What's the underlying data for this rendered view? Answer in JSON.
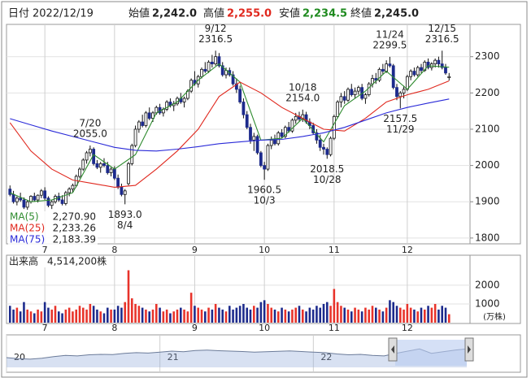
{
  "header": {
    "date_label": "日付",
    "date": "2022/12/19",
    "open_label": "始値",
    "open": "2,242.0",
    "high_label": "高値",
    "high": "2,255.0",
    "low_label": "安値",
    "low": "2,234.5",
    "close_label": "終値",
    "close": "2,245.0"
  },
  "chart_data": [
    {
      "type": "candlestick",
      "up_color": "#ffffff",
      "down_color": "#1c2a8c",
      "outline_color": "#111111",
      "candles": [
        [
          1935,
          1945,
          1915,
          1920
        ],
        [
          1920,
          1930,
          1895,
          1900
        ],
        [
          1900,
          1915,
          1890,
          1910
        ],
        [
          1910,
          1925,
          1900,
          1905
        ],
        [
          1905,
          1912,
          1880,
          1885
        ],
        [
          1885,
          1905,
          1878,
          1900
        ],
        [
          1900,
          1918,
          1895,
          1915
        ],
        [
          1915,
          1925,
          1900,
          1905
        ],
        [
          1905,
          1920,
          1898,
          1918
        ],
        [
          1918,
          1935,
          1910,
          1930
        ],
        [
          1930,
          1940,
          1905,
          1910
        ],
        [
          1910,
          1915,
          1885,
          1890
        ],
        [
          1890,
          1905,
          1880,
          1900
        ],
        [
          1900,
          1920,
          1895,
          1915
        ],
        [
          1915,
          1925,
          1900,
          1905
        ],
        [
          1905,
          1918,
          1890,
          1895
        ],
        [
          1895,
          1930,
          1890,
          1925
        ],
        [
          1925,
          1940,
          1915,
          1935
        ],
        [
          1935,
          1950,
          1925,
          1945
        ],
        [
          1945,
          1975,
          1940,
          1970
        ],
        [
          1970,
          1995,
          1965,
          1990
        ],
        [
          1990,
          2020,
          1985,
          2015
        ],
        [
          2015,
          2040,
          2005,
          2035
        ],
        [
          2035,
          2055,
          2025,
          2045
        ],
        [
          2045,
          2050,
          2000,
          2005
        ],
        [
          2005,
          2015,
          1990,
          1995
        ],
        [
          1995,
          2010,
          1980,
          2005
        ],
        [
          2005,
          2020,
          1995,
          2000
        ],
        [
          2000,
          2010,
          1975,
          1980
        ],
        [
          1980,
          1995,
          1970,
          1990
        ],
        [
          1990,
          1998,
          1960,
          1965
        ],
        [
          1965,
          1975,
          1935,
          1940
        ],
        [
          1940,
          1950,
          1915,
          1920
        ],
        [
          1920,
          1935,
          1893,
          1930
        ],
        [
          1950,
          2010,
          1945,
          2005
        ],
        [
          2005,
          2060,
          2000,
          2055
        ],
        [
          2055,
          2110,
          2050,
          2100
        ],
        [
          2100,
          2125,
          2090,
          2120
        ],
        [
          2120,
          2140,
          2105,
          2110
        ],
        [
          2110,
          2150,
          2105,
          2145
        ],
        [
          2145,
          2160,
          2125,
          2130
        ],
        [
          2130,
          2150,
          2120,
          2145
        ],
        [
          2145,
          2165,
          2140,
          2160
        ],
        [
          2160,
          2170,
          2140,
          2145
        ],
        [
          2145,
          2160,
          2135,
          2155
        ],
        [
          2155,
          2180,
          2150,
          2175
        ],
        [
          2175,
          2185,
          2160,
          2165
        ],
        [
          2165,
          2178,
          2150,
          2170
        ],
        [
          2170,
          2190,
          2165,
          2185
        ],
        [
          2185,
          2200,
          2170,
          2175
        ],
        [
          2175,
          2190,
          2160,
          2185
        ],
        [
          2185,
          2210,
          2180,
          2205
        ],
        [
          2205,
          2240,
          2200,
          2235
        ],
        [
          2235,
          2260,
          2220,
          2225
        ],
        [
          2225,
          2250,
          2215,
          2245
        ],
        [
          2245,
          2270,
          2240,
          2265
        ],
        [
          2265,
          2285,
          2255,
          2260
        ],
        [
          2260,
          2290,
          2255,
          2285
        ],
        [
          2285,
          2305,
          2270,
          2280
        ],
        [
          2280,
          2316.5,
          2275,
          2300
        ],
        [
          2300,
          2310,
          2270,
          2275
        ],
        [
          2275,
          2285,
          2245,
          2250
        ],
        [
          2250,
          2270,
          2240,
          2262
        ],
        [
          2262,
          2270,
          2245,
          2250
        ],
        [
          2250,
          2260,
          2220,
          2225
        ],
        [
          2225,
          2240,
          2200,
          2210
        ],
        [
          2210,
          2220,
          2170,
          2175
        ],
        [
          2175,
          2185,
          2130,
          2140
        ],
        [
          2140,
          2150,
          2100,
          2105
        ],
        [
          2105,
          2115,
          2060,
          2070
        ],
        [
          2070,
          2090,
          2040,
          2080
        ],
        [
          2080,
          2085,
          2030,
          2035
        ],
        [
          2035,
          2040,
          1995,
          2000
        ],
        [
          2000,
          2010,
          1960.5,
          1990
        ],
        [
          1990,
          2060,
          1985,
          2055
        ],
        [
          2055,
          2080,
          2045,
          2070
        ],
        [
          2070,
          2085,
          2055,
          2060
        ],
        [
          2060,
          2095,
          2055,
          2090
        ],
        [
          2090,
          2100,
          2075,
          2080
        ],
        [
          2080,
          2110,
          2075,
          2105
        ],
        [
          2105,
          2120,
          2090,
          2095
        ],
        [
          2095,
          2130,
          2090,
          2125
        ],
        [
          2125,
          2145,
          2115,
          2135
        ],
        [
          2135,
          2148,
          2120,
          2128
        ],
        [
          2128,
          2154,
          2120,
          2140
        ],
        [
          2140,
          2148,
          2115,
          2120
        ],
        [
          2120,
          2130,
          2100,
          2110
        ],
        [
          2110,
          2118,
          2085,
          2090
        ],
        [
          2090,
          2100,
          2060,
          2070
        ],
        [
          2070,
          2085,
          2040,
          2050
        ],
        [
          2050,
          2060,
          2030,
          2045
        ],
        [
          2045,
          2050,
          2018.5,
          2030
        ],
        [
          2030,
          2080,
          2025,
          2075
        ],
        [
          2075,
          2140,
          2070,
          2135
        ],
        [
          2135,
          2180,
          2130,
          2175
        ],
        [
          2175,
          2200,
          2160,
          2190
        ],
        [
          2190,
          2205,
          2170,
          2180
        ],
        [
          2180,
          2215,
          2175,
          2210
        ],
        [
          2210,
          2225,
          2190,
          2195
        ],
        [
          2195,
          2215,
          2185,
          2205
        ],
        [
          2205,
          2220,
          2195,
          2215
        ],
        [
          2215,
          2225,
          2180,
          2185
        ],
        [
          2185,
          2200,
          2170,
          2195
        ],
        [
          2195,
          2230,
          2190,
          2225
        ],
        [
          2225,
          2250,
          2215,
          2240
        ],
        [
          2240,
          2255,
          2225,
          2235
        ],
        [
          2235,
          2270,
          2230,
          2265
        ],
        [
          2265,
          2280,
          2250,
          2260
        ],
        [
          2260,
          2290,
          2255,
          2280
        ],
        [
          2280,
          2299.5,
          2270,
          2275
        ],
        [
          2275,
          2280,
          2210,
          2215
        ],
        [
          2215,
          2225,
          2180,
          2190
        ],
        [
          2190,
          2205,
          2157.5,
          2200
        ],
        [
          2200,
          2220,
          2185,
          2210
        ],
        [
          2210,
          2250,
          2205,
          2245
        ],
        [
          2245,
          2265,
          2235,
          2260
        ],
        [
          2260,
          2270,
          2245,
          2250
        ],
        [
          2250,
          2275,
          2245,
          2270
        ],
        [
          2270,
          2280,
          2255,
          2262
        ],
        [
          2262,
          2290,
          2258,
          2285
        ],
        [
          2285,
          2295,
          2265,
          2270
        ],
        [
          2270,
          2285,
          2262,
          2280
        ],
        [
          2280,
          2295,
          2270,
          2290
        ],
        [
          2290,
          2300,
          2270,
          2280
        ],
        [
          2280,
          2316.5,
          2265,
          2270
        ],
        [
          2270,
          2280,
          2250,
          2255
        ],
        [
          2242,
          2255,
          2234.5,
          2245
        ]
      ],
      "xlim": [
        -1,
        132
      ],
      "xticks": [
        {
          "value": 10,
          "label": "7"
        },
        {
          "value": 30,
          "label": "8"
        },
        {
          "value": 53,
          "label": "9"
        },
        {
          "value": 73,
          "label": "10"
        },
        {
          "value": 93,
          "label": "11"
        },
        {
          "value": 114,
          "label": "12"
        }
      ],
      "ylim": [
        1784,
        2389
      ],
      "yticks": [
        1800,
        1900,
        2000,
        2100,
        2200,
        2300
      ],
      "grid": true,
      "lines": [
        {
          "name": "MA(5)",
          "color": "#2e8b2e",
          "legend_value": "2,270.90",
          "x": [
            0,
            6,
            12,
            18,
            24,
            30,
            36,
            42,
            48,
            54,
            60,
            66,
            72,
            78,
            84,
            90,
            96,
            102,
            108,
            114,
            120,
            126
          ],
          "values": [
            1925,
            1900,
            1905,
            1925,
            2030,
            1990,
            2030,
            2145,
            2175,
            2235,
            2280,
            2230,
            2070,
            2075,
            2130,
            2065,
            2165,
            2205,
            2260,
            2210,
            2275,
            2270.9
          ]
        },
        {
          "name": "MA(25)",
          "color": "#e0281e",
          "legend_value": "2,233.26",
          "x": [
            0,
            6,
            12,
            18,
            24,
            30,
            36,
            42,
            48,
            54,
            60,
            66,
            72,
            78,
            84,
            90,
            96,
            102,
            108,
            114,
            120,
            126
          ],
          "values": [
            2118,
            2040,
            1990,
            1960,
            1950,
            1940,
            1945,
            1990,
            2040,
            2100,
            2190,
            2230,
            2200,
            2160,
            2130,
            2100,
            2095,
            2130,
            2175,
            2195,
            2210,
            2233.26
          ]
        },
        {
          "name": "MA(75)",
          "color": "#2a2ad8",
          "legend_value": "2,183.39",
          "x": [
            0,
            6,
            12,
            18,
            24,
            30,
            36,
            42,
            48,
            54,
            60,
            66,
            72,
            78,
            84,
            90,
            96,
            102,
            108,
            114,
            120,
            126
          ],
          "values": [
            2129,
            2112,
            2095,
            2080,
            2065,
            2050,
            2042,
            2040,
            2045,
            2052,
            2060,
            2065,
            2070,
            2072,
            2080,
            2090,
            2105,
            2125,
            2145,
            2160,
            2172,
            2183.39
          ]
        }
      ],
      "annotations": [
        {
          "date": "7/20",
          "value": 2055,
          "label": "2055.0"
        },
        {
          "date": "8/4",
          "value": 1893,
          "label": "1893.0"
        },
        {
          "date": "9/12",
          "value": 2316.5
        },
        {
          "date": "10/3",
          "value": 1960.5
        },
        {
          "date": "10/18",
          "value": 2154,
          "label": "2154.0"
        },
        {
          "date": "10/28",
          "value": 2018.5
        },
        {
          "date": "11/24",
          "value": 2299.5
        },
        {
          "date": "11/29",
          "value": 2157.5
        },
        {
          "date": "12/15",
          "value": 2316.5
        }
      ]
    },
    {
      "type": "bar",
      "title": "出来高",
      "value_text": "4,514,200株",
      "unit": "(万株)",
      "up_color": "#e8332a",
      "down_color": "#1c2a8c",
      "values": [
        900,
        700,
        800,
        600,
        1100,
        700,
        600,
        500,
        700,
        600,
        1100,
        800,
        700,
        900,
        600,
        500,
        700,
        800,
        600,
        700,
        900,
        800,
        700,
        1000,
        900,
        700,
        600,
        500,
        800,
        700,
        700,
        900,
        800,
        1100,
        2800,
        1300,
        1000,
        900,
        800,
        700,
        600,
        700,
        1000,
        800,
        600,
        700,
        500,
        600,
        700,
        800,
        700,
        600,
        1600,
        900,
        800,
        700,
        600,
        800,
        700,
        1000,
        800,
        700,
        600,
        900,
        700,
        800,
        900,
        1000,
        800,
        700,
        900,
        800,
        1100,
        1200,
        1000,
        800,
        700,
        600,
        800,
        700,
        600,
        700,
        800,
        900,
        700,
        600,
        800,
        700,
        900,
        800,
        1000,
        1100,
        900,
        1800,
        1100,
        900,
        800,
        700,
        600,
        800,
        700,
        600,
        800,
        700,
        900,
        800,
        700,
        600,
        800,
        1200,
        1100,
        900,
        800,
        700,
        1000,
        800,
        700,
        600,
        800,
        700,
        900,
        800,
        1000,
        700,
        900,
        800,
        451.42
      ],
      "xlim": [
        -1,
        132
      ],
      "xticks": [
        {
          "value": 10,
          "label": "7"
        },
        {
          "value": 30,
          "label": "8"
        },
        {
          "value": 53,
          "label": "9"
        },
        {
          "value": 73,
          "label": "10"
        },
        {
          "value": 93,
          "label": "11"
        },
        {
          "value": 114,
          "label": "12"
        }
      ],
      "ylim": [
        0,
        3430
      ],
      "yticks": [
        1000,
        2000
      ],
      "grid": true
    },
    {
      "type": "area",
      "color": "#8fa9d9",
      "line_color": "#6b7b99",
      "values": [
        1850,
        1800,
        1780,
        1820,
        1900,
        1950,
        1930,
        1980,
        2000,
        1990,
        2050,
        2080,
        2060,
        2100,
        2150,
        2120,
        2180,
        2200,
        2170,
        2150,
        2130,
        2100,
        2120,
        2140,
        2160,
        2130,
        2100,
        2080,
        2020,
        1980,
        2000,
        1950,
        1930,
        2050,
        2150,
        2250,
        2050,
        2120,
        2200,
        2250
      ],
      "xlim": [
        0,
        39
      ],
      "ylim": [
        1400,
        2600
      ],
      "xticks": [
        {
          "value": 0,
          "label": "20"
        },
        {
          "value": 13,
          "label": "21"
        },
        {
          "value": 26,
          "label": "22"
        }
      ]
    }
  ]
}
